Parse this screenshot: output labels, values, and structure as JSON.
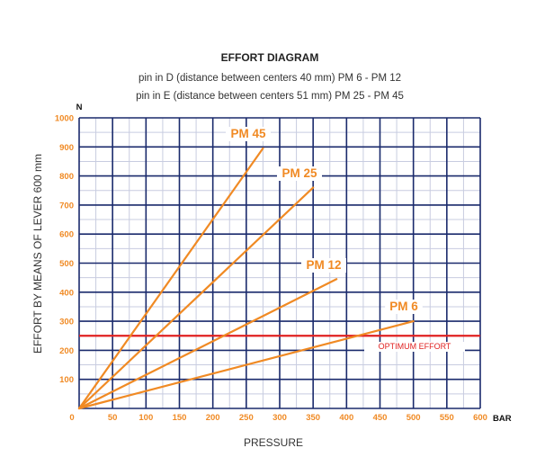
{
  "chart_data": {
    "type": "line",
    "title": "EFFORT DIAGRAM",
    "subtitle_lines": [
      "pin in D (distance between centers 40 mm) PM 6 - PM 12",
      "pin in E (distance between centers 51 mm) PM 25 - PM 45"
    ],
    "xlabel": "PRESSURE",
    "ylabel": "EFFORT BY MEANS OF LEVER 600 mm",
    "x_unit": "BAR",
    "y_unit": "N",
    "xlim": [
      0,
      600
    ],
    "ylim": [
      0,
      1000
    ],
    "x_ticks": [
      "0",
      "50",
      "100",
      "150",
      "200",
      "250",
      "300",
      "350",
      "400",
      "450",
      "500",
      "550",
      "600"
    ],
    "y_ticks": [
      "100",
      "200",
      "300",
      "400",
      "500",
      "600",
      "700",
      "800",
      "900",
      "1000"
    ],
    "grid": true,
    "series": [
      {
        "name": "PM 45",
        "x": [
          0,
          275
        ],
        "y": [
          0,
          895
        ],
        "color": "#f08a24"
      },
      {
        "name": "PM 25",
        "x": [
          0,
          350
        ],
        "y": [
          0,
          760
        ],
        "color": "#f08a24"
      },
      {
        "name": "PM 12",
        "x": [
          0,
          385
        ],
        "y": [
          0,
          445
        ],
        "color": "#f08a24"
      },
      {
        "name": "PM 6",
        "x": [
          0,
          500
        ],
        "y": [
          0,
          300
        ],
        "color": "#f08a24"
      }
    ],
    "reference_line": {
      "label": "OPTIMUM EFFORT",
      "y": 250,
      "color": "#e02020"
    },
    "colors": {
      "grid_major": "#1a2a6c",
      "grid_minor": "#c8cce0",
      "series": "#f08a24",
      "ticks": "#f08a24"
    }
  }
}
